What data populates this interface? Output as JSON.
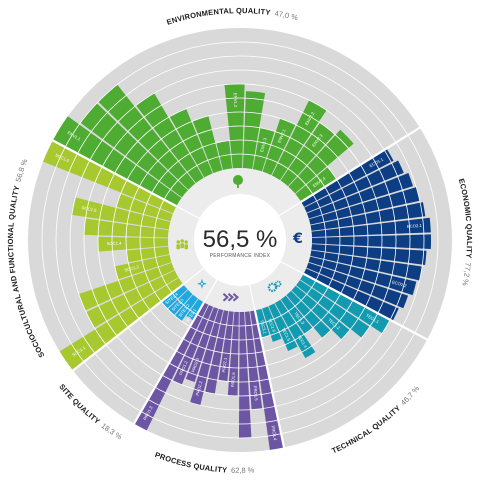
{
  "chart_data": {
    "type": "radial-bar",
    "center": {
      "value": "56,5 %",
      "label": "PERFORMANCE INDEX"
    },
    "max_value": 100,
    "ring_count": 10,
    "background_color": "#d9d9d9",
    "ring_line_color": "#ffffff",
    "categories": [
      {
        "key": "env",
        "name": "ENVIRONMENTAL QUALITY",
        "value_label": "47,0 %",
        "color": "#4fac32",
        "icon": "tree-icon",
        "criteria": [
          {
            "label": "ENV1.1",
            "value": 100
          },
          {
            "label": "",
            "value": 90
          },
          {
            "label": "",
            "value": 90
          },
          {
            "label": "",
            "value": 70
          },
          {
            "label": "",
            "value": 50
          },
          {
            "label": "",
            "value": 40
          },
          {
            "label": "",
            "value": 20
          },
          {
            "label": "ENV1.2",
            "value": 60
          },
          {
            "label": "",
            "value": 55
          },
          {
            "label": "ENV1.3",
            "value": 30
          },
          {
            "label": "ENV2.1",
            "value": 40
          },
          {
            "label": "ENV2.2",
            "value": 60
          },
          {
            "label": "ENV2.3",
            "value": 50
          },
          {
            "label": "",
            "value": 55
          },
          {
            "label": "ENV2.4",
            "value": 30
          }
        ]
      },
      {
        "key": "eco",
        "name": "ECONOMIC QUALITY",
        "value_label": "77,2 %",
        "color": "#0d3e84",
        "icon": "euro-icon",
        "criteria": [
          {
            "label": "ECO1.1",
            "value": 72
          },
          {
            "label": "",
            "value": 75
          },
          {
            "label": "",
            "value": 78
          },
          {
            "label": "",
            "value": 80
          },
          {
            "label": "",
            "value": 82
          },
          {
            "label": "ECO2.1",
            "value": 85
          },
          {
            "label": "",
            "value": 85
          },
          {
            "label": "",
            "value": 82
          },
          {
            "label": "",
            "value": 80
          },
          {
            "label": "ECO2.2",
            "value": 78
          },
          {
            "label": "",
            "value": 75
          },
          {
            "label": "",
            "value": 72
          }
        ]
      },
      {
        "key": "tec",
        "name": "TECHNICAL QUALITY",
        "value_label": "46,7 %",
        "color": "#129ab0",
        "icon": "gears-icon",
        "criteria": [
          {
            "label": "TEC1.1",
            "value": 70
          },
          {
            "label": "",
            "value": 60
          },
          {
            "label": "TEC1.2",
            "value": 50
          },
          {
            "label": "",
            "value": 40
          },
          {
            "label": "TEC1.3",
            "value": 30
          },
          {
            "label": "TEC1.4",
            "value": 45
          },
          {
            "label": "TEC1.5",
            "value": 35
          },
          {
            "label": "TEC1.6",
            "value": 25
          },
          {
            "label": "TEC3.1",
            "value": 20
          }
        ]
      },
      {
        "key": "pro",
        "name": "PROCESS QUALITY",
        "value_label": "62,8 %",
        "color": "#6c55a3",
        "icon": "process-arrows-icon",
        "criteria": [
          {
            "label": "PRO1.4",
            "value": 100
          },
          {
            "label": "PRO1.5",
            "value": 70
          },
          {
            "label": "",
            "value": 90
          },
          {
            "label": "PRO1.6",
            "value": 60
          },
          {
            "label": "PRO2.1",
            "value": 50
          },
          {
            "label": "",
            "value": 60
          },
          {
            "label": "PRO2.2",
            "value": 70
          },
          {
            "label": "PRO2.3",
            "value": 55
          },
          {
            "label": "PRO1.2",
            "value": 60
          },
          {
            "label": "PRO1.3",
            "value": 100
          }
        ]
      },
      {
        "key": "site",
        "name": "SITE QUALITY",
        "value_label": "18,3 %",
        "color": "#1ea8e0",
        "icon": "compass-icon",
        "criteria": [
          {
            "label": "SITE1.1",
            "value": 15
          },
          {
            "label": "SITE1.2",
            "value": 20
          },
          {
            "label": "SITE1.3",
            "value": 20
          },
          {
            "label": "SITE1.4",
            "value": 20
          }
        ]
      },
      {
        "key": "soc",
        "name": "SOCIOCULTURAL AND FUNCTIONAL QUALITY",
        "value_label": "56,8 %",
        "color": "#a8c82f",
        "icon": "people-icon",
        "criteria": [
          {
            "label": "SOC1.1",
            "value": 100
          },
          {
            "label": "",
            "value": 70
          },
          {
            "label": "",
            "value": 70
          },
          {
            "label": "SOC1.2",
            "value": 40
          },
          {
            "label": "",
            "value": 30
          },
          {
            "label": "SOC1.4",
            "value": 50
          },
          {
            "label": "",
            "value": 60
          },
          {
            "label": "SOC1.5",
            "value": 70
          },
          {
            "label": "",
            "value": 40
          },
          {
            "label": "SOC1.6",
            "value": 100
          }
        ]
      }
    ]
  }
}
